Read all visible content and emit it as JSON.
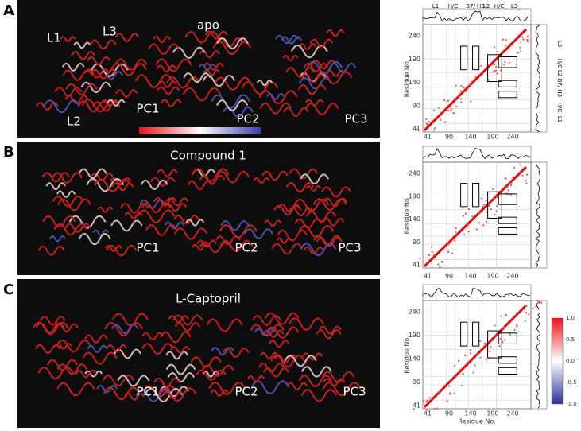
{
  "figure": {
    "panels": [
      {
        "label": "A",
        "title": "apo",
        "pc_labels": [
          "PC1",
          "PC2",
          "PC3"
        ],
        "loop_labels": [
          "L1",
          "L3",
          "L2"
        ]
      },
      {
        "label": "B",
        "title": "Compound 1",
        "pc_labels": [
          "PC1",
          "PC2",
          "PC3"
        ]
      },
      {
        "label": "C",
        "title": "L-Captopril",
        "pc_labels": [
          "PC1",
          "PC2",
          "PC3"
        ]
      }
    ],
    "map": {
      "y_ticks": [
        "41",
        "90",
        "140",
        "190",
        "240"
      ],
      "x_ticks": [
        "41",
        "90",
        "140",
        "190",
        "240"
      ],
      "axis_label": "Residue No.",
      "top_labels": [
        "L1",
        "H/C",
        "B7/ H3",
        "L2",
        "H/C",
        "L3"
      ],
      "right_labels": [
        "L3",
        "H/C",
        "L2 B7/ H3",
        "H/C",
        "L1"
      ],
      "colorbar_ticks": [
        "1.0",
        "0.5",
        "0.0",
        "-0.5",
        "-1.0"
      ]
    }
  }
}
